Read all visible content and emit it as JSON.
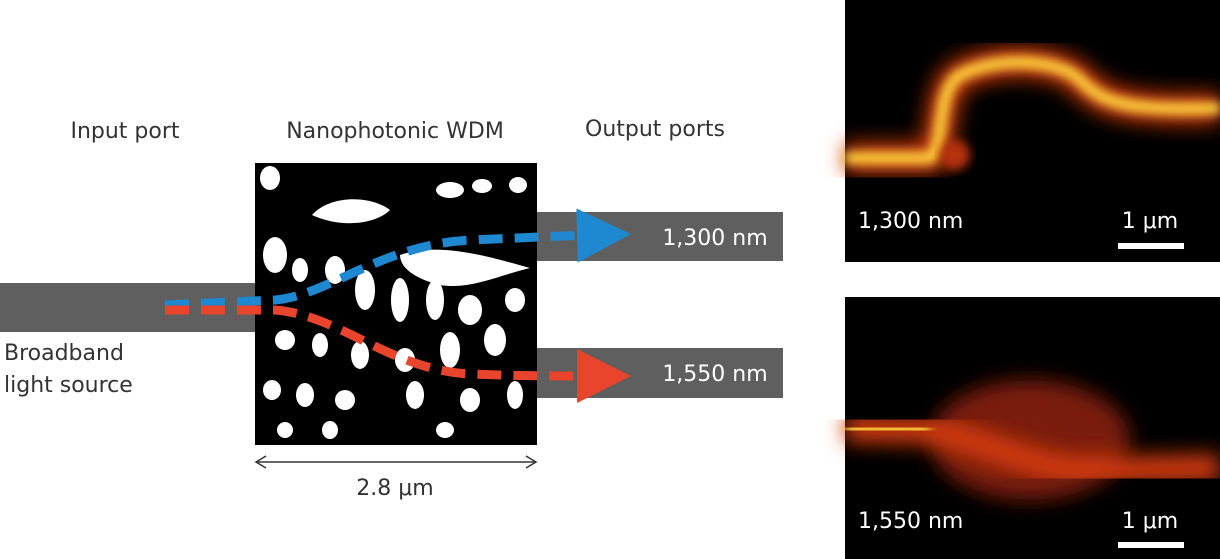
{
  "labels": {
    "input": "Input port",
    "device": "Nanophotonic WDM",
    "output": "Output ports",
    "source": [
      "Broadband",
      "light source"
    ],
    "width": "2.8 μm"
  },
  "outputs": [
    {
      "label": "1,300 nm"
    },
    {
      "label": "1,550 nm"
    }
  ],
  "panels": [
    {
      "wavelength": "1,300 nm",
      "scale": "1 μm"
    },
    {
      "wavelength": "1,550 nm",
      "scale": "1 μm"
    }
  ]
}
